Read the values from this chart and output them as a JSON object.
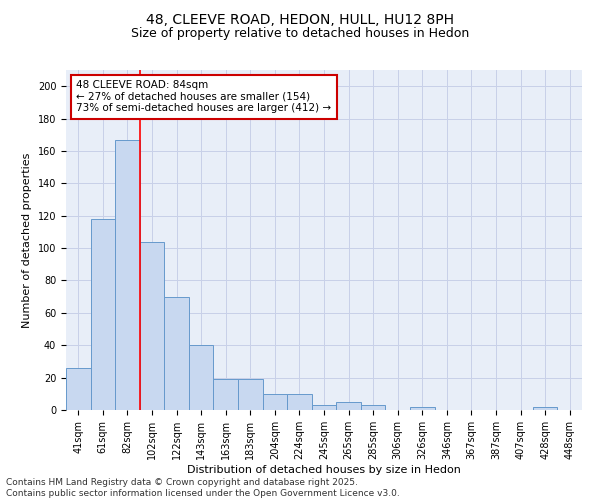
{
  "title_line1": "48, CLEEVE ROAD, HEDON, HULL, HU12 8PH",
  "title_line2": "Size of property relative to detached houses in Hedon",
  "xlabel": "Distribution of detached houses by size in Hedon",
  "ylabel": "Number of detached properties",
  "bar_labels": [
    "41sqm",
    "61sqm",
    "82sqm",
    "102sqm",
    "122sqm",
    "143sqm",
    "163sqm",
    "183sqm",
    "204sqm",
    "224sqm",
    "245sqm",
    "265sqm",
    "285sqm",
    "306sqm",
    "326sqm",
    "346sqm",
    "367sqm",
    "387sqm",
    "407sqm",
    "428sqm",
    "448sqm"
  ],
  "bar_heights": [
    26,
    118,
    167,
    104,
    70,
    40,
    19,
    19,
    10,
    10,
    3,
    5,
    3,
    0,
    2,
    0,
    0,
    0,
    0,
    2,
    0
  ],
  "bar_color": "#c8d8f0",
  "bar_edge_color": "#6699cc",
  "bar_width": 1.0,
  "ylim": [
    0,
    210
  ],
  "yticks": [
    0,
    20,
    40,
    60,
    80,
    100,
    120,
    140,
    160,
    180,
    200
  ],
  "red_line_x": 2.5,
  "annotation_line1": "48 CLEEVE ROAD: 84sqm",
  "annotation_line2": "← 27% of detached houses are smaller (154)",
  "annotation_line3": "73% of semi-detached houses are larger (412) →",
  "annotation_box_color": "#cc0000",
  "annotation_bg": "#ffffff",
  "grid_color": "#c8d0e8",
  "bg_color": "#e8eef8",
  "footer_line1": "Contains HM Land Registry data © Crown copyright and database right 2025.",
  "footer_line2": "Contains public sector information licensed under the Open Government Licence v3.0.",
  "title_fontsize": 10,
  "subtitle_fontsize": 9,
  "annotation_fontsize": 7.5,
  "tick_fontsize": 7,
  "xlabel_fontsize": 8,
  "ylabel_fontsize": 8,
  "footer_fontsize": 6.5
}
